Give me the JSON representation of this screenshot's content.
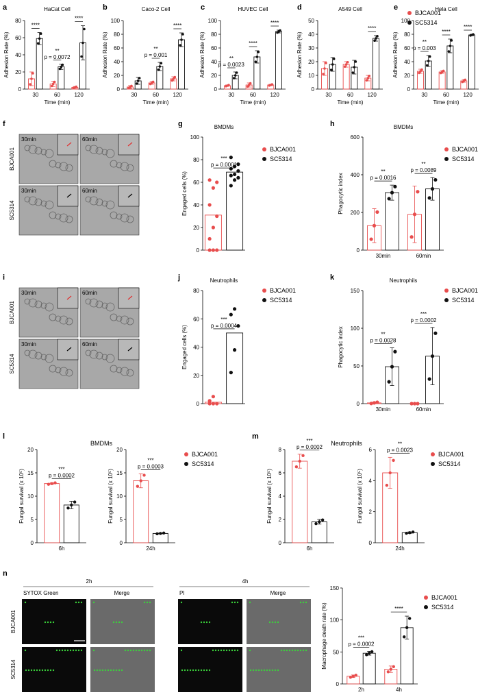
{
  "colors": {
    "red": "#e84d4d",
    "black": "#111111",
    "axis": "#000000",
    "micro_bg": "#a8a8a8",
    "fluor_bg": "#0a0a0a",
    "merge_bg": "#6a6a6a",
    "green": "#3bd23b"
  },
  "legend": {
    "series1": "BJCA001",
    "series2": "SC5314"
  },
  "panel_letters": [
    "a",
    "b",
    "c",
    "d",
    "e",
    "f",
    "g",
    "h",
    "i",
    "j",
    "k",
    "l",
    "m",
    "n"
  ],
  "adhesion": {
    "ylabel": "Adhesion Rate (%)",
    "xlabel": "Time (min)",
    "categories": [
      "30",
      "60",
      "120"
    ],
    "panels": [
      {
        "id": "a",
        "title": "HaCat Cell",
        "ylim": [
          0,
          80
        ],
        "yticks": [
          "0",
          "20",
          "40",
          "60",
          "80"
        ],
        "bjca": [
          12,
          6,
          2
        ],
        "sc": [
          59,
          26,
          54
        ],
        "bjca_err": [
          8,
          3,
          1
        ],
        "sc_err": [
          7,
          3,
          20
        ],
        "stars": [
          "****",
          "**",
          "****"
        ],
        "p": [
          "",
          "p = 0.0072",
          ""
        ]
      },
      {
        "id": "b",
        "title": "Caco-2 Cell",
        "ylim": [
          0,
          100
        ],
        "yticks": [
          "0",
          "20",
          "40",
          "60",
          "80",
          "100"
        ],
        "bjca": [
          3,
          9,
          15
        ],
        "sc": [
          12,
          33,
          72
        ],
        "bjca_err": [
          2,
          2,
          3
        ],
        "sc_err": [
          5,
          6,
          10
        ],
        "stars": [
          "",
          "**",
          "****"
        ],
        "p": [
          "",
          "p = 0.001",
          ""
        ]
      },
      {
        "id": "c",
        "title": "HUVEC Cell",
        "ylim": [
          0,
          100
        ],
        "yticks": [
          "0",
          "20",
          "40",
          "60",
          "80",
          "100"
        ],
        "bjca": [
          5,
          6,
          6
        ],
        "sc": [
          20,
          47,
          84
        ],
        "bjca_err": [
          1,
          3,
          1
        ],
        "sc_err": [
          5,
          9,
          2
        ],
        "stars": [
          "**",
          "****",
          "****"
        ],
        "p": [
          "p = 0.0023",
          "",
          ""
        ]
      },
      {
        "id": "d",
        "title": "A549 Cell",
        "ylim": [
          0,
          50
        ],
        "yticks": [
          "0",
          "10",
          "20",
          "30",
          "40",
          "50"
        ],
        "bjca": [
          15,
          18,
          8
        ],
        "sc": [
          18,
          16,
          37
        ],
        "bjca_err": [
          5,
          2,
          2
        ],
        "sc_err": [
          5,
          5,
          2
        ],
        "stars": [
          "",
          "",
          "****"
        ],
        "p": [
          "",
          "",
          ""
        ]
      },
      {
        "id": "e",
        "title": "Hela Cell",
        "ylim": [
          0,
          100
        ],
        "yticks": [
          "0",
          "20",
          "40",
          "60",
          "80",
          "100"
        ],
        "bjca": [
          26,
          25,
          12
        ],
        "sc": [
          41,
          63,
          79
        ],
        "bjca_err": [
          3,
          2,
          2
        ],
        "sc_err": [
          8,
          10,
          1
        ],
        "stars": [
          "**",
          "****",
          "****"
        ],
        "p": [
          "p = 0.003",
          "",
          ""
        ]
      }
    ]
  },
  "micrographs": {
    "f": {
      "rows": [
        "BJCA001",
        "SC5314"
      ],
      "cols": [
        "30min",
        "60min"
      ]
    },
    "i": {
      "rows": [
        "BJCA001",
        "SC5314"
      ],
      "cols": [
        "30min",
        "60min"
      ]
    }
  },
  "chart_data": [
    {
      "type": "bar",
      "title": "HaCat Cell",
      "xlabel": "Time (min)",
      "ylabel": "Adhesion Rate (%)",
      "categories": [
        "30",
        "60",
        "120"
      ],
      "series": [
        {
          "name": "BJCA001",
          "values": [
            12,
            6,
            2
          ]
        },
        {
          "name": "SC5314",
          "values": [
            59,
            26,
            54
          ]
        }
      ],
      "ylim": [
        0,
        80
      ]
    },
    {
      "type": "bar",
      "title": "Caco-2 Cell",
      "xlabel": "Time (min)",
      "ylabel": "Adhesion Rate (%)",
      "categories": [
        "30",
        "60",
        "120"
      ],
      "series": [
        {
          "name": "BJCA001",
          "values": [
            3,
            9,
            15
          ]
        },
        {
          "name": "SC5314",
          "values": [
            12,
            33,
            72
          ]
        }
      ],
      "ylim": [
        0,
        100
      ]
    },
    {
      "type": "bar",
      "title": "HUVEC Cell",
      "xlabel": "Time (min)",
      "ylabel": "Adhesion Rate (%)",
      "categories": [
        "30",
        "60",
        "120"
      ],
      "series": [
        {
          "name": "BJCA001",
          "values": [
            5,
            6,
            6
          ]
        },
        {
          "name": "SC5314",
          "values": [
            20,
            47,
            84
          ]
        }
      ],
      "ylim": [
        0,
        100
      ]
    },
    {
      "type": "bar",
      "title": "A549 Cell",
      "xlabel": "Time (min)",
      "ylabel": "Adhesion Rate (%)",
      "categories": [
        "30",
        "60",
        "120"
      ],
      "series": [
        {
          "name": "BJCA001",
          "values": [
            15,
            18,
            8
          ]
        },
        {
          "name": "SC5314",
          "values": [
            18,
            16,
            37
          ]
        }
      ],
      "ylim": [
        0,
        50
      ]
    },
    {
      "type": "bar",
      "title": "Hela Cell",
      "xlabel": "Time (min)",
      "ylabel": "Adhesion Rate (%)",
      "categories": [
        "30",
        "60",
        "120"
      ],
      "series": [
        {
          "name": "BJCA001",
          "values": [
            26,
            25,
            12
          ]
        },
        {
          "name": "SC5314",
          "values": [
            41,
            63,
            79
          ]
        }
      ],
      "ylim": [
        0,
        100
      ]
    },
    {
      "type": "bar",
      "id": "g",
      "title": "BMDMs",
      "ylabel": "Engaged cells (%)",
      "categories": [
        ""
      ],
      "series": [
        {
          "name": "BJCA001",
          "values": [
            31
          ]
        },
        {
          "name": "SC5314",
          "values": [
            69
          ]
        }
      ],
      "ylim": [
        0,
        100
      ],
      "yticks": [
        "0",
        "20",
        "40",
        "60",
        "80",
        "100"
      ],
      "stars": "***",
      "p": "p = 0.0001",
      "points_bjca": [
        0,
        0,
        0,
        10,
        20,
        30,
        40,
        55,
        60,
        62
      ],
      "points_sc": [
        57,
        62,
        64,
        66,
        67,
        70,
        72,
        74,
        76,
        82
      ]
    },
    {
      "type": "bar",
      "id": "h",
      "title": "BMDMs",
      "ylabel": "Phagocytic index",
      "categories": [
        "30min",
        "60min"
      ],
      "series": [
        {
          "name": "BJCA001",
          "values": [
            130,
            190
          ]
        },
        {
          "name": "SC5314",
          "values": [
            305,
            325
          ]
        }
      ],
      "ylim": [
        0,
        600
      ],
      "yticks": [
        "0",
        "200",
        "400",
        "600"
      ],
      "stars": [
        "**",
        "**"
      ],
      "p": [
        "p = 0.0016",
        "p = 0.0089"
      ]
    },
    {
      "type": "bar",
      "id": "j",
      "title": "Neutrophils",
      "ylabel": "Engaged cells (%)",
      "categories": [
        ""
      ],
      "series": [
        {
          "name": "BJCA001",
          "values": [
            1
          ]
        },
        {
          "name": "SC5314",
          "values": [
            50
          ]
        }
      ],
      "ylim": [
        0,
        80
      ],
      "yticks": [
        "0",
        "20",
        "40",
        "60",
        "80"
      ],
      "stars": "***",
      "p": "p = 0.0004",
      "points_bjca": [
        0,
        0,
        0,
        2,
        5
      ],
      "points_sc": [
        22,
        38,
        55,
        63,
        67
      ]
    },
    {
      "type": "bar",
      "id": "k",
      "title": "Neutrophils",
      "ylabel": "Phagocytic index",
      "categories": [
        "30min",
        "60min"
      ],
      "series": [
        {
          "name": "BJCA001",
          "values": [
            1,
            0
          ]
        },
        {
          "name": "SC5314",
          "values": [
            49,
            63
          ]
        }
      ],
      "ylim": [
        0,
        150
      ],
      "yticks": [
        "0",
        "50",
        "100",
        "150"
      ],
      "stars": [
        "**",
        "***"
      ],
      "p": [
        "p = 0.0028",
        "p = 0.0002"
      ]
    },
    {
      "type": "bar",
      "id": "l1",
      "title": "BMDMs",
      "ylabel": "Fungal survival (x 10⁵)",
      "categories": [
        "6h"
      ],
      "series": [
        {
          "name": "BJCA001",
          "values": [
            12.7
          ]
        },
        {
          "name": "SC5314",
          "values": [
            8.1
          ]
        }
      ],
      "ylim": [
        0,
        20
      ],
      "yticks": [
        "0",
        "5",
        "10",
        "15",
        "20"
      ],
      "stars": "***",
      "p": "p = 0.0002"
    },
    {
      "type": "bar",
      "id": "l2",
      "ylabel": "Fungal survival (x 10⁵)",
      "categories": [
        "24h"
      ],
      "series": [
        {
          "name": "BJCA001",
          "values": [
            13.3
          ]
        },
        {
          "name": "SC5314",
          "values": [
            2.0
          ]
        }
      ],
      "ylim": [
        0,
        20
      ],
      "yticks": [
        "0",
        "5",
        "10",
        "15",
        "20"
      ],
      "stars": "***",
      "p": "p = 0.0003"
    },
    {
      "type": "bar",
      "id": "m1",
      "title": "Neutrophils",
      "ylabel": "Fungal survival (x 10⁵)",
      "categories": [
        "6h"
      ],
      "series": [
        {
          "name": "BJCA001",
          "values": [
            7.0
          ]
        },
        {
          "name": "SC5314",
          "values": [
            1.8
          ]
        }
      ],
      "ylim": [
        0,
        8
      ],
      "yticks": [
        "0",
        "2",
        "4",
        "6",
        "8"
      ],
      "stars": "***",
      "p": "p = 0.0002"
    },
    {
      "type": "bar",
      "id": "m2",
      "ylabel": "Fungal survival (x 10⁵)",
      "categories": [
        "24h"
      ],
      "series": [
        {
          "name": "BJCA001",
          "values": [
            4.5
          ]
        },
        {
          "name": "SC5314",
          "values": [
            0.65
          ]
        }
      ],
      "ylim": [
        0,
        6
      ],
      "yticks": [
        "0",
        "2",
        "4",
        "6"
      ],
      "stars": "**",
      "p": "p = 0.0023"
    },
    {
      "type": "bar",
      "id": "n",
      "ylabel": "Macrophage death rate (%)",
      "categories": [
        "2h",
        "4h"
      ],
      "series": [
        {
          "name": "BJCA001",
          "values": [
            12,
            23
          ]
        },
        {
          "name": "SC5314",
          "values": [
            48,
            88
          ]
        }
      ],
      "ylim": [
        0,
        150
      ],
      "yticks": [
        "0",
        "50",
        "100",
        "150"
      ],
      "stars": [
        "***",
        "****"
      ],
      "p": [
        "p = 0.0002",
        ""
      ]
    }
  ],
  "panel_n": {
    "groups": [
      "2h",
      "4h"
    ],
    "cols_2h": [
      "SYTOX Green",
      "Merge"
    ],
    "cols_4h": [
      "PI",
      "Merge"
    ],
    "rows": [
      "BJCA001",
      "SC5314"
    ]
  }
}
